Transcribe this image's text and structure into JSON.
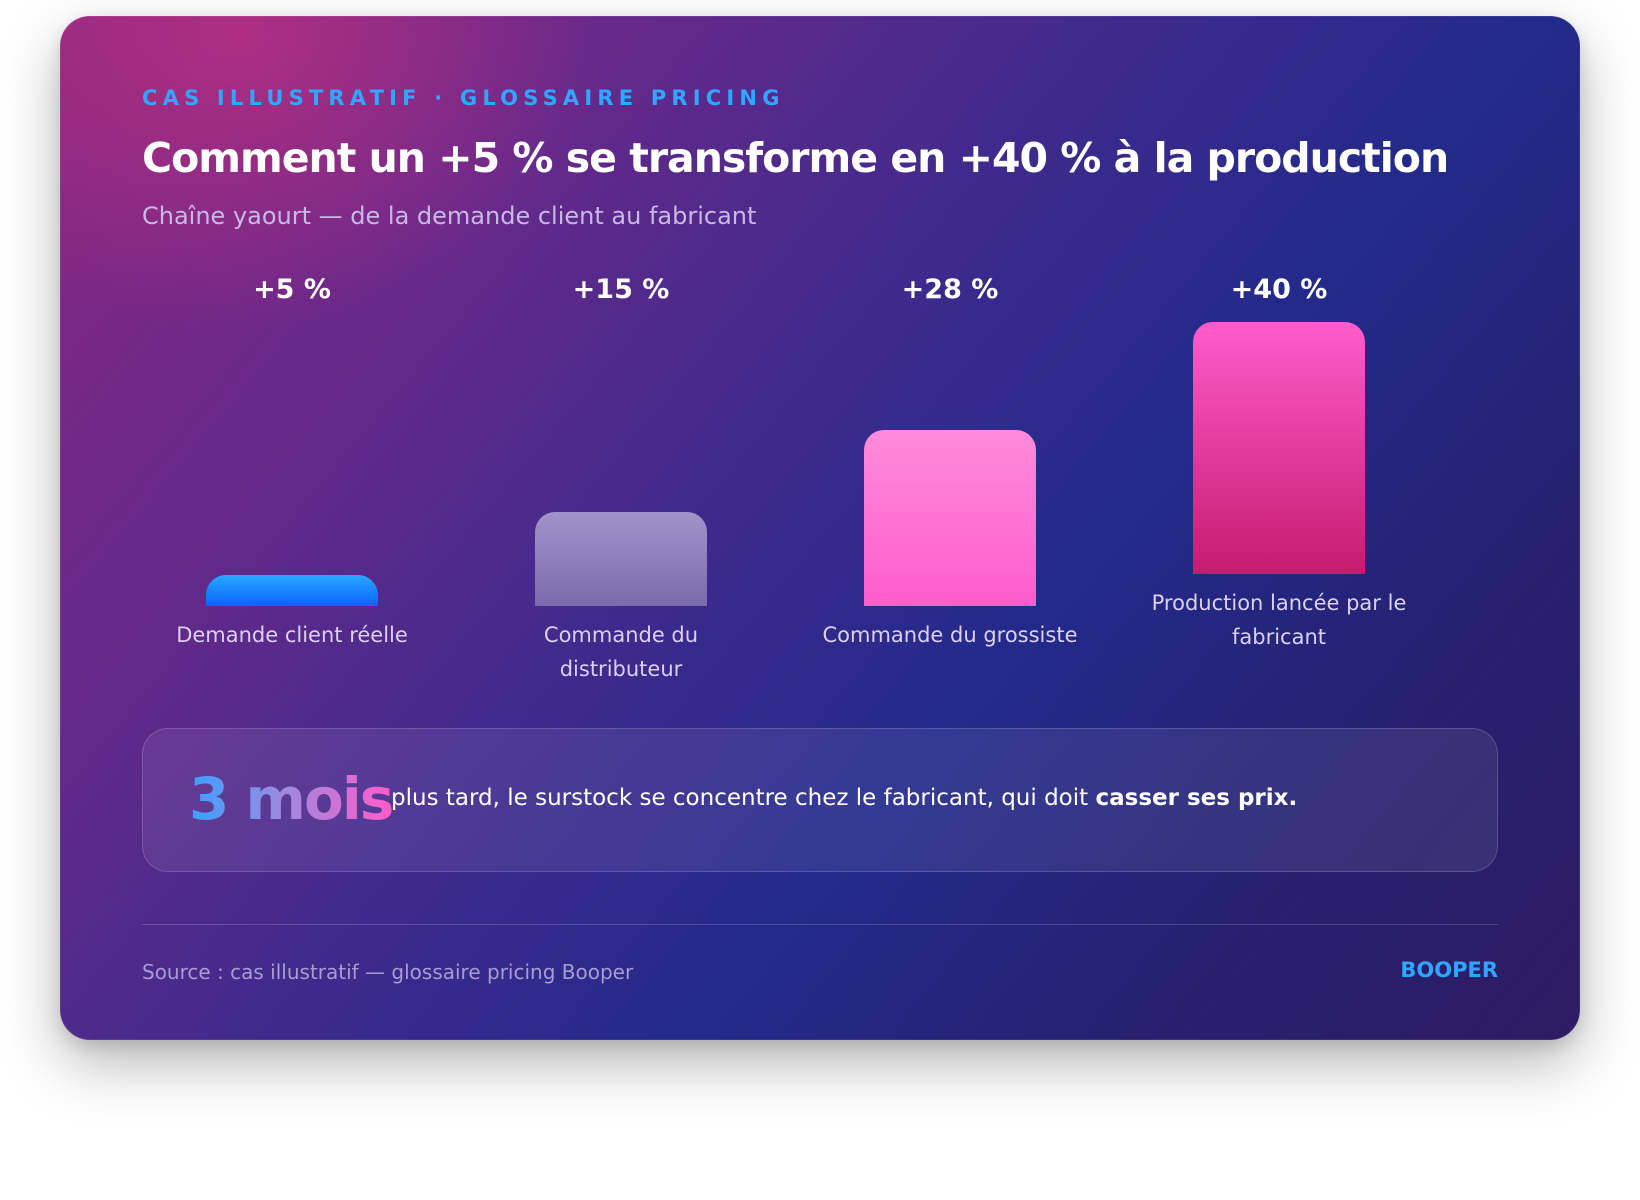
{
  "header": {
    "eyebrow": "CAS ILLUSTRATIF · GLOSSAIRE PRICING",
    "title": "Comment un +5 % se transforme en +40 % à la production",
    "subtitle": "Chaîne yaourt — de la demande client au fabricant"
  },
  "chart_data": {
    "type": "bar",
    "title": "Comment un +5 % se transforme en +40 % à la production",
    "subtitle": "Chaîne yaourt — de la demande client au fabricant",
    "categories": [
      "Demande client réelle",
      "Commande du distributeur",
      "Commande du grossiste",
      "Production lancée par le fabricant"
    ],
    "values": [
      5,
      15,
      28,
      40
    ],
    "value_labels": [
      "+5 %",
      "+15 %",
      "+28 %",
      "+40 %"
    ],
    "unit": "%",
    "xlabel": "",
    "ylabel": "",
    "grid": false,
    "legend": "none",
    "colors": [
      "#1a7cff",
      "#8e7dbd",
      "#ff72d3",
      "#e63a9a"
    ]
  },
  "callout": {
    "highlight": "3 mois",
    "text": "plus tard, le surstock se concentre chez le fabricant, qui doit ",
    "emphasis": "casser ses prix."
  },
  "footer": {
    "source": "Source : cas illustratif — glossaire pricing Booper",
    "brand": "BOOPER"
  }
}
